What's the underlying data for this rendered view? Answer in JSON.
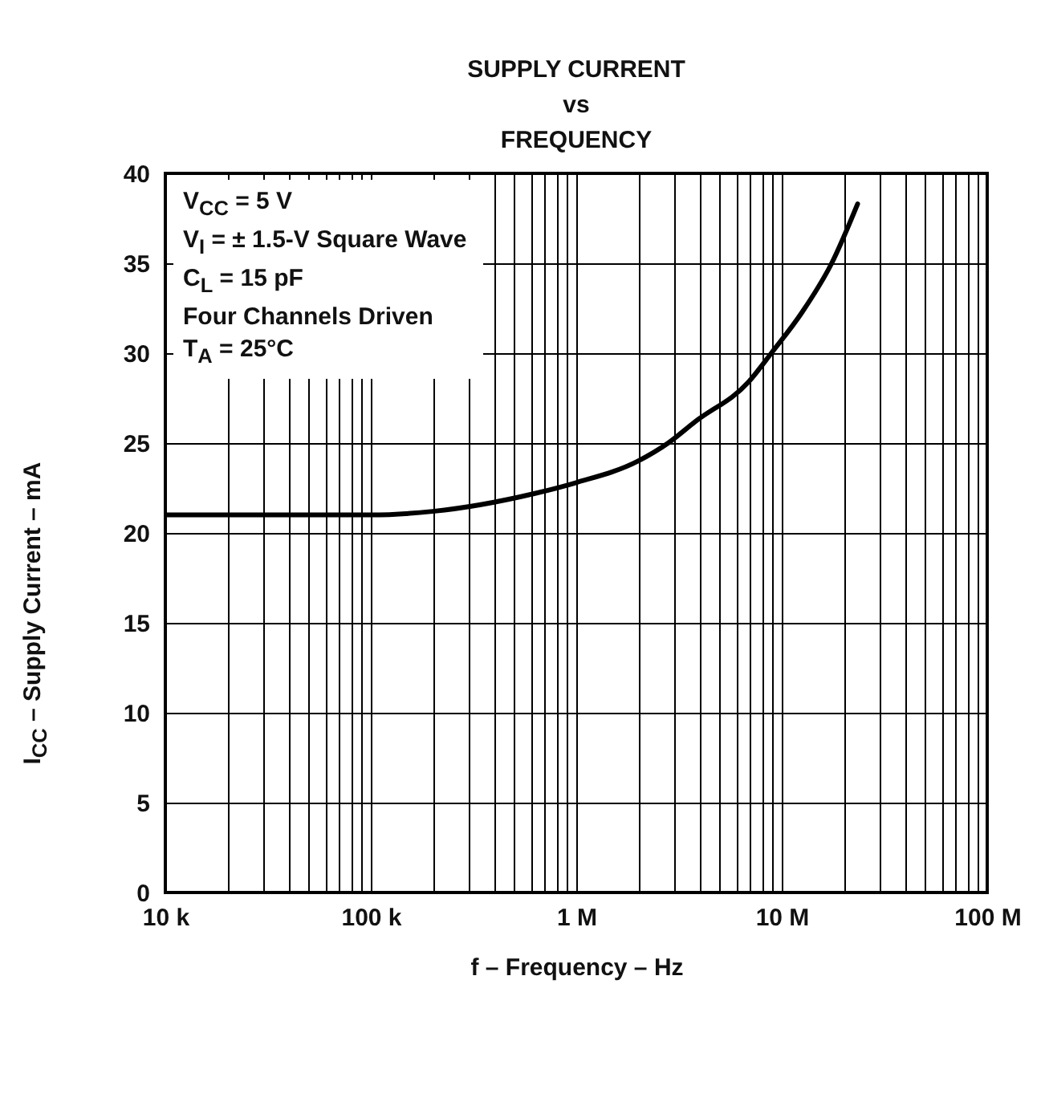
{
  "chart_data": {
    "type": "line",
    "title": "SUPPLY CURRENT\nvs\nFREQUENCY",
    "xlabel": "f – Frequency – Hz",
    "ylabel": "I$_{CC}$ – Supply Current – mA",
    "annotations": [
      "V$_{CC}$ = 5 V",
      "V$_{I}$ = ± 1.5-V Square Wave",
      "C$_{L}$ = 15 pF",
      "Four Channels Driven",
      "T$_{A}$ = 25°C"
    ],
    "log": "x",
    "grid": true,
    "marker": "none",
    "line_style": "solid",
    "xlim": [
      10000,
      100000000
    ],
    "ylim": [
      0,
      40
    ],
    "xticks": [
      {
        "value": 10000,
        "label": "10 k"
      },
      {
        "value": 20000,
        "label": null
      },
      {
        "value": 30000,
        "label": null
      },
      {
        "value": 40000,
        "label": null
      },
      {
        "value": 50000,
        "label": null
      },
      {
        "value": 60000,
        "label": null
      },
      {
        "value": 70000,
        "label": null
      },
      {
        "value": 80000,
        "label": null
      },
      {
        "value": 90000,
        "label": null
      },
      {
        "value": 100000,
        "label": "100 k"
      },
      {
        "value": 200000,
        "label": null
      },
      {
        "value": 300000,
        "label": null
      },
      {
        "value": 400000,
        "label": null
      },
      {
        "value": 500000,
        "label": null
      },
      {
        "value": 600000,
        "label": null
      },
      {
        "value": 700000,
        "label": null
      },
      {
        "value": 800000,
        "label": null
      },
      {
        "value": 900000,
        "label": null
      },
      {
        "value": 1000000,
        "label": "1 M"
      },
      {
        "value": 2000000,
        "label": null
      },
      {
        "value": 3000000,
        "label": null
      },
      {
        "value": 4000000,
        "label": null
      },
      {
        "value": 5000000,
        "label": null
      },
      {
        "value": 6000000,
        "label": null
      },
      {
        "value": 7000000,
        "label": null
      },
      {
        "value": 8000000,
        "label": null
      },
      {
        "value": 9000000,
        "label": null
      },
      {
        "value": 10000000,
        "label": "10 M"
      },
      {
        "value": 20000000,
        "label": null
      },
      {
        "value": 30000000,
        "label": null
      },
      {
        "value": 40000000,
        "label": null
      },
      {
        "value": 50000000,
        "label": null
      },
      {
        "value": 60000000,
        "label": null
      },
      {
        "value": 70000000,
        "label": null
      },
      {
        "value": 80000000,
        "label": null
      },
      {
        "value": 90000000,
        "label": null
      },
      {
        "value": 100000000,
        "label": "100 M"
      }
    ],
    "yticks": [
      0,
      5,
      10,
      15,
      20,
      25,
      30,
      35,
      40
    ],
    "x": [
      10000,
      50000,
      100000,
      200000,
      630000,
      1000000,
      2000000,
      2800000,
      3800000,
      6900000,
      8900000,
      12600000,
      17500000,
      23400000
    ],
    "series": [
      {
        "color": "#000000",
        "values": [
          21,
          21,
          21,
          21.2,
          22.2,
          22.8,
          24,
          25,
          26.2,
          28.4,
          30,
          32.3,
          35,
          38.3
        ]
      }
    ]
  }
}
